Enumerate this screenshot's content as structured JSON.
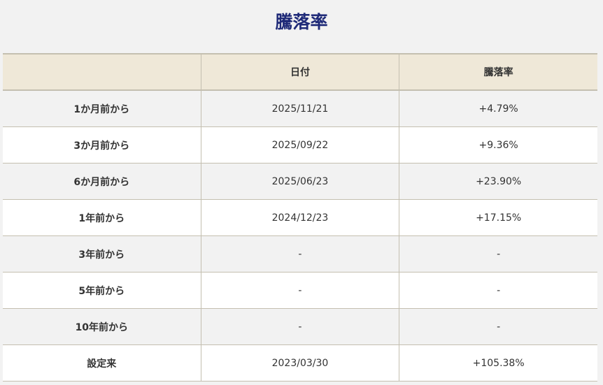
{
  "title": "騰落率",
  "headers": [
    "",
    "日付",
    "騰落率"
  ],
  "rows": [
    [
      "1か月前から",
      "2025/11/21",
      "+4.79%"
    ],
    [
      "3か月前から",
      "2025/09/22",
      "+9.36%"
    ],
    [
      "6か月前から",
      "2025/06/23",
      "+23.90%"
    ],
    [
      "1年前から",
      "2024/12/23",
      "+17.15%"
    ],
    [
      "3年前から",
      "-",
      "-"
    ],
    [
      "5年前から",
      "-",
      "-"
    ],
    [
      "10年前から",
      "-",
      "-"
    ],
    [
      "設定来",
      "2023/03/30",
      "+105.38%"
    ]
  ]
}
